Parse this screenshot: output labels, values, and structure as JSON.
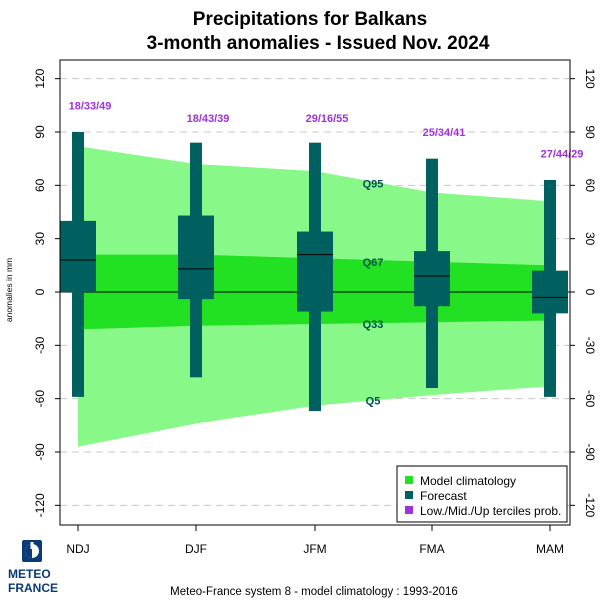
{
  "title": "Precipitations  for  Balkans",
  "subtitle": "3-month anomalies    -    Issued Nov. 2024",
  "footer": "Meteo-France system 8  -  model climatology : 1993-2016",
  "logo": {
    "text_line1": "METEO",
    "text_line2": "FRANCE",
    "icon": "meteo-france-logo-icon"
  },
  "colors": {
    "climatology_outer": "#88f888",
    "climatology_inner": "#22e022",
    "forecast": "#005f5f",
    "tercile_text": "#a030e0",
    "quantile_text": "#005050",
    "grid": "#c8c8c8"
  },
  "legend": {
    "items": [
      {
        "label": "Model climatology",
        "color": "#22e022"
      },
      {
        "label": "Forecast",
        "color": "#005f5f"
      },
      {
        "label": "Low./Mid./Up terciles prob.",
        "color": "#a030e0"
      }
    ]
  },
  "chart_data": {
    "type": "boxplot",
    "title": "Precipitations  for  Balkans",
    "subtitle": "3-month anomalies    -    Issued Nov. 2024",
    "ylabel": "anomalies in mm",
    "ylim": [
      -130,
      130
    ],
    "yticks": [
      -120,
      -90,
      -60,
      -30,
      0,
      30,
      60,
      90,
      120
    ],
    "grid": true,
    "legend_position": "bottom-right",
    "categories": [
      "NDJ",
      "DJF",
      "JFM",
      "FMA",
      "MAM"
    ],
    "climatology": {
      "q5": [
        -87,
        -74,
        -64,
        -58,
        -53
      ],
      "q33": [
        -21,
        -19,
        -18,
        -17,
        -16
      ],
      "q67": [
        21,
        21,
        19,
        17,
        15
      ],
      "q95": [
        82,
        72,
        68,
        56,
        51
      ]
    },
    "quantile_labels": [
      {
        "name": "Q95",
        "value": 61
      },
      {
        "name": "Q67",
        "value": 17
      },
      {
        "name": "Q33",
        "value": -18
      },
      {
        "name": "Q5",
        "value": -61
      }
    ],
    "forecast": {
      "min": [
        -59,
        -48,
        -67,
        -54,
        -59
      ],
      "q25": [
        0,
        -4,
        -11,
        -8,
        -12
      ],
      "median": [
        18,
        13,
        21,
        9,
        -3
      ],
      "q75": [
        40,
        43,
        34,
        23,
        12
      ],
      "max": [
        90,
        84,
        84,
        75,
        63
      ]
    },
    "tercile_probs": [
      "18/33/49",
      "18/43/39",
      "29/16/55",
      "25/34/41",
      "27/44/29"
    ],
    "tercile_label_y": [
      105,
      98,
      98,
      90,
      78
    ]
  }
}
